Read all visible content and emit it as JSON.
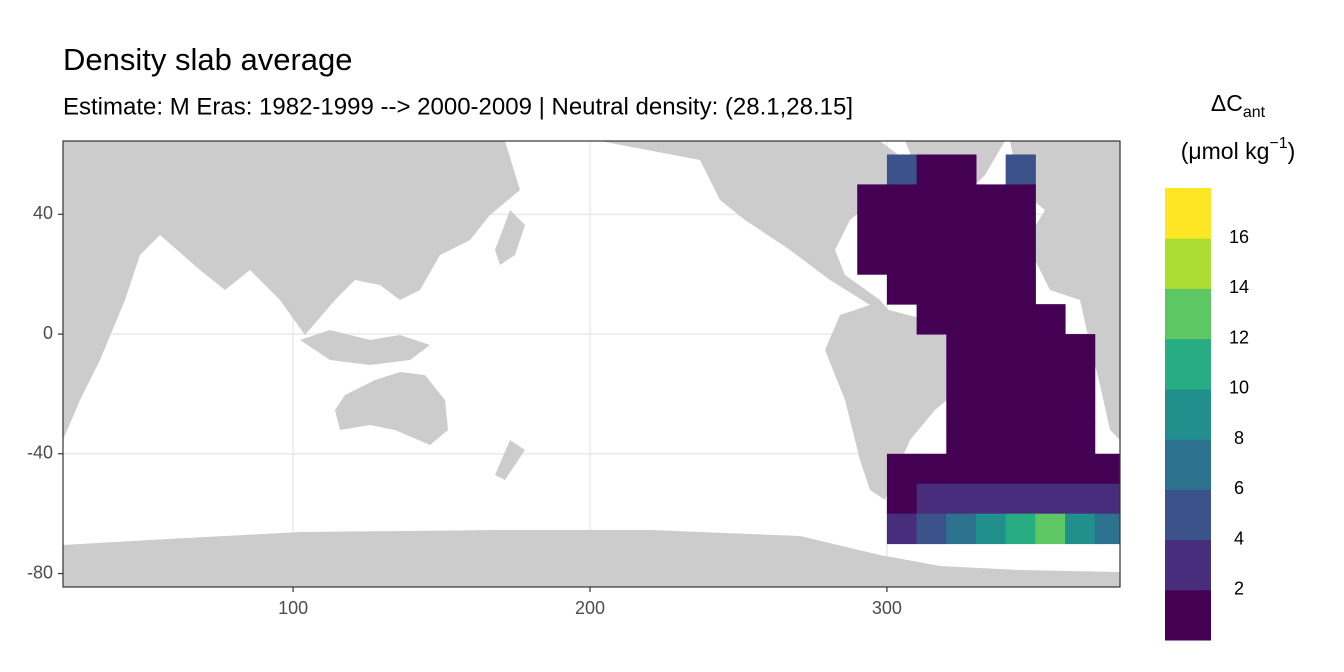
{
  "chart_data": {
    "type": "raster",
    "title": "Density slab average",
    "subtitle": "Estimate: M Eras: 1982-1999 --> 2000-2009 | Neutral density: (28.1,28.15]",
    "legend_title": [
      "ΔC",
      "ant",
      "(μmol kg",
      "−1",
      ")"
    ],
    "xlim": [
      22.5,
      378.5
    ],
    "ylim": [
      -84.5,
      64.5
    ],
    "xticks": [
      100,
      200,
      300
    ],
    "yticks": [
      40,
      0,
      -40,
      -80
    ],
    "grid": true,
    "legend": {
      "limits": [
        0,
        18
      ],
      "breaks": [
        2,
        4,
        6,
        8,
        10,
        12,
        14,
        16
      ],
      "colors": [
        "#440154",
        "#472d7b",
        "#3b528b",
        "#2c728e",
        "#21908d",
        "#27ad81",
        "#5dc863",
        "#aadc32",
        "#fde725"
      ]
    },
    "x": [
      305,
      315,
      325,
      345,
      295,
      305,
      315,
      325,
      335,
      345,
      295,
      305,
      315,
      325,
      335,
      345,
      295,
      305,
      315,
      325,
      335,
      345,
      305,
      315,
      325,
      335,
      345,
      315,
      325,
      335,
      345,
      355,
      325,
      335,
      345,
      355,
      365,
      325,
      335,
      345,
      355,
      365,
      325,
      335,
      345,
      355,
      365,
      325,
      335,
      345,
      355,
      365,
      305,
      315,
      325,
      335,
      345,
      355,
      365,
      375,
      305,
      315,
      325,
      335,
      345,
      355,
      365,
      375,
      305,
      315,
      325,
      335,
      345,
      355,
      365,
      375
    ],
    "y": [
      55,
      55,
      55,
      55,
      45,
      45,
      45,
      45,
      45,
      45,
      35,
      35,
      35,
      35,
      35,
      35,
      25,
      25,
      25,
      25,
      25,
      25,
      15,
      15,
      15,
      15,
      15,
      5,
      5,
      5,
      5,
      5,
      -5,
      -5,
      -5,
      -5,
      -5,
      -15,
      -15,
      -15,
      -15,
      -15,
      -25,
      -25,
      -25,
      -25,
      -25,
      -35,
      -35,
      -35,
      -35,
      -35,
      -45,
      -45,
      -45,
      -45,
      -45,
      -45,
      -45,
      -45,
      -55,
      -55,
      -55,
      -55,
      -55,
      -55,
      -55,
      -55,
      -65,
      -65,
      -65,
      -65,
      -65,
      -65,
      -65,
      -65
    ],
    "values": [
      4,
      1,
      1,
      4,
      1,
      1,
      1,
      1,
      1,
      1,
      1,
      1,
      1,
      1,
      1,
      1,
      1,
      1,
      1,
      1,
      1,
      1,
      1,
      1,
      1,
      1,
      1,
      1,
      1,
      1,
      1,
      1,
      1,
      1,
      1,
      1,
      1,
      1,
      1,
      1,
      1,
      1,
      1,
      1,
      1,
      1,
      1,
      1,
      1,
      1,
      1,
      1,
      1,
      1,
      1,
      1,
      1,
      1,
      1,
      1,
      1,
      2,
      2,
      2,
      3,
      3,
      3,
      3,
      3,
      5,
      7,
      9,
      11,
      12,
      9,
      7
    ]
  }
}
